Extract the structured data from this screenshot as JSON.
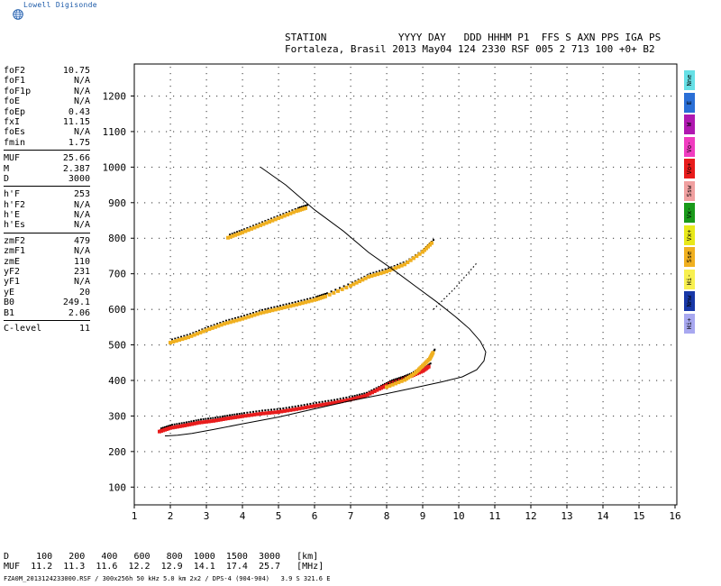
{
  "logo": {
    "text": "Lowell Digisonde",
    "icon": "globe-icon"
  },
  "header": {
    "line1": "STATION            YYYY DAY   DDD HHHM P1  FFS S AXN PPS IGA PS",
    "line2": "Fortaleza, Brasil 2013 May04 124 2330 RSF 005 2 713 100 +0+ B2"
  },
  "params": [
    [
      [
        "foF2",
        "10.75"
      ],
      [
        "foF1",
        "N/A"
      ],
      [
        "foF1p",
        "N/A"
      ],
      [
        "foE",
        "N/A"
      ],
      [
        "foEp",
        "0.43"
      ],
      [
        "fxI",
        "11.15"
      ],
      [
        "foEs",
        "N/A"
      ],
      [
        "fmin",
        "1.75"
      ]
    ],
    [
      [
        "MUF",
        "25.66"
      ],
      [
        "M",
        "2.387"
      ],
      [
        "D",
        "3000"
      ]
    ],
    [
      [
        "h'F",
        "253"
      ],
      [
        "h'F2",
        "N/A"
      ],
      [
        "h'E",
        "N/A"
      ],
      [
        "h'Es",
        "N/A"
      ]
    ],
    [
      [
        "zmF2",
        "479"
      ],
      [
        "zmF1",
        "N/A"
      ],
      [
        "zmE",
        "110"
      ],
      [
        "yF2",
        "231"
      ],
      [
        "yF1",
        "N/A"
      ],
      [
        "yE",
        "20"
      ],
      [
        "B0",
        "249.1"
      ],
      [
        "B1",
        "2.06"
      ]
    ],
    [
      [
        "C-level",
        "11"
      ]
    ]
  ],
  "legend": [
    {
      "label": "Nne",
      "color": "#66e0e6"
    },
    {
      "label": "E",
      "color": "#2a6fd6"
    },
    {
      "label": "W",
      "color": "#b018b0"
    },
    {
      "label": "Vo-",
      "color": "#f03cc0"
    },
    {
      "label": "Vo+",
      "color": "#e81c1c"
    },
    {
      "label": "Ssw",
      "color": "#f0a0a0"
    },
    {
      "label": "Vx-",
      "color": "#1a9a1a"
    },
    {
      "label": "Vx+",
      "color": "#e8e81a"
    },
    {
      "label": "Sse",
      "color": "#f0b020"
    },
    {
      "label": "Hi-",
      "color": "#f8f050"
    },
    {
      "label": "Nnw",
      "color": "#1838a8"
    },
    {
      "label": "Hi+",
      "color": "#a8a8f0"
    }
  ],
  "footer": {
    "line1": "D     100   200   400   600   800  1000  1500  3000   [km]",
    "line2": "MUF  11.2  11.3  11.6  12.2  12.9  14.1  17.4  25.7   [MHz]",
    "file": "FZA0M_2013124233000.RSF / 300x256h 50 kHz 5.0 km 2x2 / DPS-4 (904-904)   3.9 S 321.6 E"
  },
  "chart_data": {
    "type": "scatter",
    "x_ticks": [
      "1",
      "2",
      "3",
      "4",
      "5",
      "6",
      "7",
      "8",
      "9",
      "10",
      "11",
      "12",
      "13",
      "14",
      "15",
      "16"
    ],
    "y_ticks": [
      "100",
      "200",
      "300",
      "400",
      "500",
      "600",
      "700",
      "800",
      "900",
      "1000",
      "1100",
      "1200"
    ],
    "xlim": [
      1,
      16
    ],
    "ylim": [
      50,
      1290
    ],
    "grid": true,
    "profile_curve": [
      [
        4.5,
        1000
      ],
      [
        5.2,
        950
      ],
      [
        6.0,
        880
      ],
      [
        6.8,
        820
      ],
      [
        7.5,
        760
      ],
      [
        8.2,
        710
      ],
      [
        8.8,
        665
      ],
      [
        9.4,
        620
      ],
      [
        9.9,
        580
      ],
      [
        10.3,
        545
      ],
      [
        10.6,
        510
      ],
      [
        10.75,
        480
      ],
      [
        10.7,
        455
      ],
      [
        10.5,
        430
      ],
      [
        10.1,
        410
      ],
      [
        9.5,
        395
      ],
      [
        8.8,
        380
      ],
      [
        8.0,
        363
      ],
      [
        7.0,
        343
      ],
      [
        6.0,
        320
      ],
      [
        5.0,
        297
      ],
      [
        4.0,
        278
      ],
      [
        3.2,
        262
      ],
      [
        2.6,
        251
      ],
      [
        2.2,
        246
      ],
      [
        1.9,
        244
      ],
      [
        1.85,
        244
      ]
    ],
    "x_trace_curve": [
      [
        9.3,
        600
      ],
      [
        9.6,
        630
      ],
      [
        9.9,
        660
      ],
      [
        10.2,
        695
      ],
      [
        10.5,
        730
      ]
    ],
    "echo_traces": [
      {
        "name": "Vo+",
        "color": "#e81c1c",
        "points": [
          [
            1.7,
            255
          ],
          [
            2.0,
            265
          ],
          [
            2.4,
            272
          ],
          [
            2.8,
            280
          ],
          [
            3.2,
            285
          ],
          [
            3.6,
            292
          ],
          [
            4.0,
            298
          ],
          [
            4.5,
            305
          ],
          [
            5.0,
            310
          ],
          [
            5.5,
            318
          ],
          [
            6.0,
            327
          ],
          [
            6.5,
            335
          ],
          [
            7.0,
            345
          ],
          [
            7.4,
            355
          ],
          [
            7.8,
            375
          ],
          [
            8.1,
            390
          ],
          [
            8.4,
            400
          ],
          [
            8.7,
            412
          ],
          [
            9.0,
            425
          ],
          [
            9.2,
            440
          ]
        ]
      },
      {
        "name": "Sse",
        "color": "#f0b020",
        "points": [
          [
            2.0,
            505
          ],
          [
            2.5,
            520
          ],
          [
            3.0,
            540
          ],
          [
            3.5,
            558
          ],
          [
            4.0,
            572
          ],
          [
            4.5,
            588
          ],
          [
            5.0,
            600
          ],
          [
            5.5,
            612
          ],
          [
            6.0,
            625
          ],
          [
            6.3,
            635
          ],
          [
            7.0,
            665
          ],
          [
            7.5,
            690
          ],
          [
            8.0,
            705
          ],
          [
            8.5,
            725
          ],
          [
            9.0,
            760
          ],
          [
            9.3,
            790
          ]
        ]
      },
      {
        "name": "Sse",
        "color": "#f0b020",
        "points": [
          [
            3.6,
            800
          ],
          [
            4.0,
            815
          ],
          [
            4.5,
            835
          ],
          [
            5.0,
            855
          ],
          [
            5.5,
            875
          ],
          [
            5.8,
            885
          ]
        ]
      },
      {
        "name": "Sse",
        "color": "#f0b020",
        "points": [
          [
            8.0,
            380
          ],
          [
            8.5,
            400
          ],
          [
            8.8,
            420
          ],
          [
            9.0,
            440
          ],
          [
            9.2,
            460
          ],
          [
            9.3,
            480
          ]
        ]
      }
    ]
  }
}
